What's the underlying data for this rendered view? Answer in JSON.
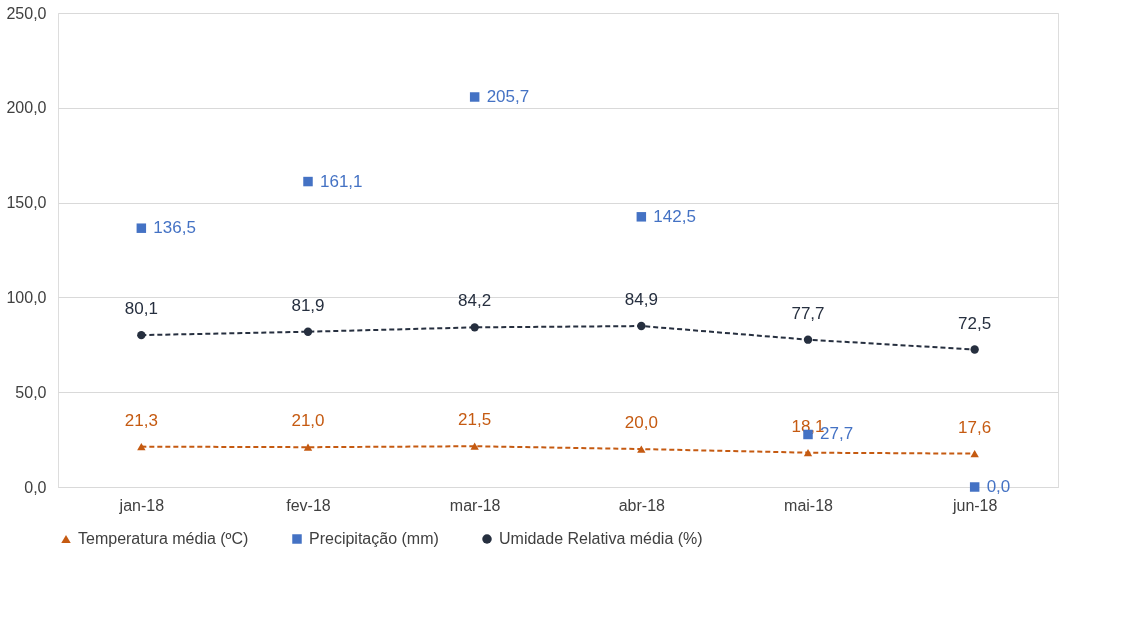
{
  "chart_data": {
    "type": "line",
    "categories": [
      "jan-18",
      "fev-18",
      "mar-18",
      "abr-18",
      "mai-18",
      "jun-18"
    ],
    "series": [
      {
        "name": "Temperatura média (ºC)",
        "color": "#c55a11",
        "marker": "triangle",
        "line_style": "dashed",
        "values": [
          21.3,
          21.0,
          21.5,
          20.0,
          18.1,
          17.6
        ],
        "value_labels": [
          "21,3",
          "21,0",
          "21,5",
          "20,0",
          "18,1",
          "17,6"
        ]
      },
      {
        "name": "Precipitação (mm)",
        "type": "scatter",
        "color": "#4472c4",
        "marker": "square",
        "values": [
          136.5,
          161.1,
          205.7,
          142.5,
          27.7,
          0.0
        ],
        "value_labels": [
          "136,5",
          "161,1",
          "205,7",
          "142,5",
          "27,7",
          "0,0"
        ]
      },
      {
        "name": "Umidade Relativa média (%)",
        "color": "#262f3f",
        "marker": "circle",
        "line_style": "dashed",
        "values": [
          80.1,
          81.9,
          84.2,
          84.9,
          77.7,
          72.5
        ],
        "value_labels": [
          "80,1",
          "81,9",
          "84,2",
          "84,9",
          "77,7",
          "72,5"
        ]
      }
    ],
    "ylim": [
      0,
      250
    ],
    "yticks": [
      {
        "value": 0,
        "label": "0,0"
      },
      {
        "value": 50,
        "label": "50,0"
      },
      {
        "value": 100,
        "label": "100,0"
      },
      {
        "value": 150,
        "label": "150,0"
      },
      {
        "value": 200,
        "label": "200,0"
      },
      {
        "value": 250,
        "label": "250,0"
      }
    ],
    "grid": "y",
    "legend": "bottom"
  }
}
